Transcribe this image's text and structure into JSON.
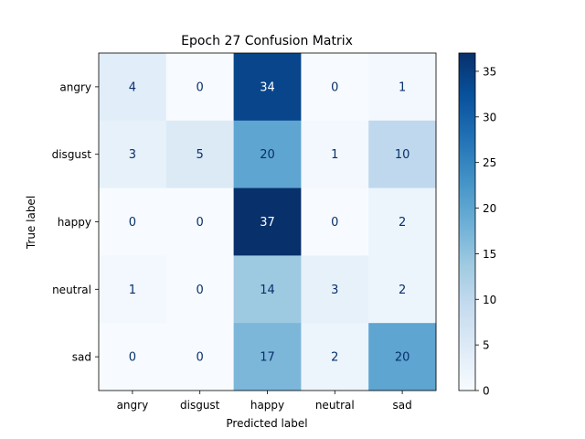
{
  "chart_data": {
    "type": "heatmap",
    "title": "Epoch 27 Confusion Matrix",
    "xlabel": "Predicted label",
    "ylabel": "True label",
    "x_categories": [
      "angry",
      "disgust",
      "happy",
      "neutral",
      "sad"
    ],
    "y_categories": [
      "angry",
      "disgust",
      "happy",
      "neutral",
      "sad"
    ],
    "values": [
      [
        4,
        0,
        34,
        0,
        1
      ],
      [
        3,
        5,
        20,
        1,
        10
      ],
      [
        0,
        0,
        37,
        0,
        2
      ],
      [
        1,
        0,
        14,
        3,
        2
      ],
      [
        0,
        0,
        17,
        2,
        20
      ]
    ],
    "colormap": "Blues",
    "colorbar": {
      "min": 0,
      "max": 37,
      "ticks": [
        0,
        5,
        10,
        15,
        20,
        25,
        30,
        35
      ]
    },
    "grid": false
  }
}
